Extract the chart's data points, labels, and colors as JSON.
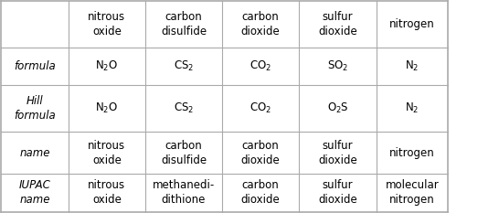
{
  "col_headers": [
    "nitrous\noxide",
    "carbon\ndisulfide",
    "carbon\ndioxide",
    "sulfur\ndioxide",
    "nitrogen"
  ],
  "row_headers": [
    "formula",
    "Hill\nformula",
    "name",
    "IUPAC\nname"
  ],
  "cells": [
    [
      "N$_2$O",
      "CS$_2$",
      "CO$_2$",
      "SO$_2$",
      "N$_2$"
    ],
    [
      "N$_2$O",
      "CS$_2$",
      "CO$_2$",
      "O$_2$S",
      "N$_2$"
    ],
    [
      "nitrous\noxide",
      "carbon\ndisulfide",
      "carbon\ndioxide",
      "sulfur\ndioxide",
      "nitrogen"
    ],
    [
      "nitrous\noxide",
      "methanedi-\ndithione",
      "carbon\ndioxide",
      "sulfur\ndioxide",
      "molecular\nnitrogen"
    ]
  ],
  "bg_color": "#ffffff",
  "line_color": "#aaaaaa",
  "text_color": "#000000",
  "header_fontsize": 8.5,
  "cell_fontsize": 8.5,
  "row_header_fontsize": 8.5
}
